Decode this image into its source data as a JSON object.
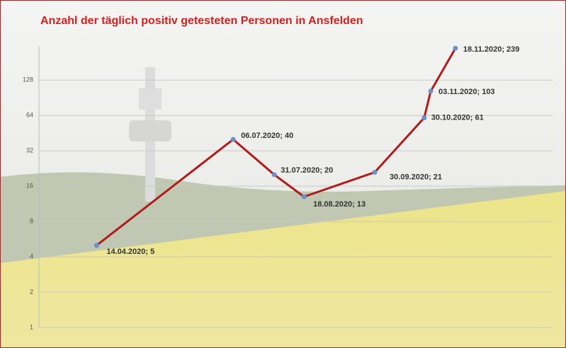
{
  "chart_data": {
    "type": "line",
    "title": "Anzahl der täglich positiv getesteten Personen in Ansfelden",
    "x": [
      "14.04.2020",
      "06.07.2020",
      "31.07.2020",
      "18.08.2020",
      "30.09.2020",
      "30.10.2020",
      "03.11.2020",
      "18.11.2020"
    ],
    "values": [
      5,
      40,
      20,
      13,
      21,
      61,
      103,
      239
    ],
    "value_labels": [
      "14.04.2020; 5",
      "06.07.2020; 40",
      "31.07.2020; 20",
      "18.08.2020; 13",
      "30.09.2020; 21",
      "30.10.2020; 61",
      "03.11.2020; 103",
      "18.11.2020; 239"
    ],
    "color": "#b01c1c",
    "marker_color": "#6f8fc7",
    "xlim": [
      "10.03.2020",
      "16.01.2021"
    ],
    "ylim": [
      1,
      250
    ],
    "ylog": true,
    "yticks": [
      1,
      2,
      4,
      8,
      16,
      32,
      64,
      128
    ],
    "grid": true
  }
}
